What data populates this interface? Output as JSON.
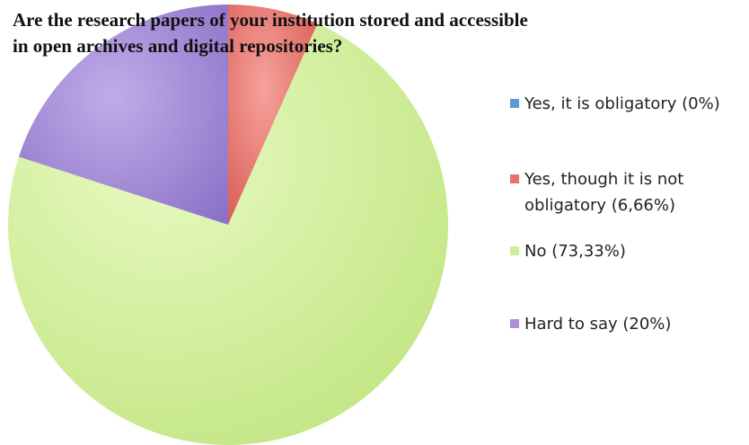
{
  "chart_data": {
    "type": "pie",
    "title": "Are the research papers of your institution stored and accessible in open archives and digital repositories?",
    "title_lines": [
      "Are the research papers of your institution stored and accessible",
      "in open archives and digital repositories?"
    ],
    "start_angle_deg": 0,
    "direction": "clockwise",
    "legend_position": "right",
    "slices": [
      {
        "label": "Yes, it is obligatory (0%)",
        "value": 0,
        "color": "#5b9bd5"
      },
      {
        "label": "Yes, though it is not obligatory (6,66%)",
        "value": 6.66,
        "color": "#e8716b"
      },
      {
        "label": "No (73,33%)",
        "value": 73.33,
        "color": "#cfee9b"
      },
      {
        "label": "Hard to say (20%)",
        "value": 20,
        "color": "#a88fd6"
      }
    ]
  }
}
